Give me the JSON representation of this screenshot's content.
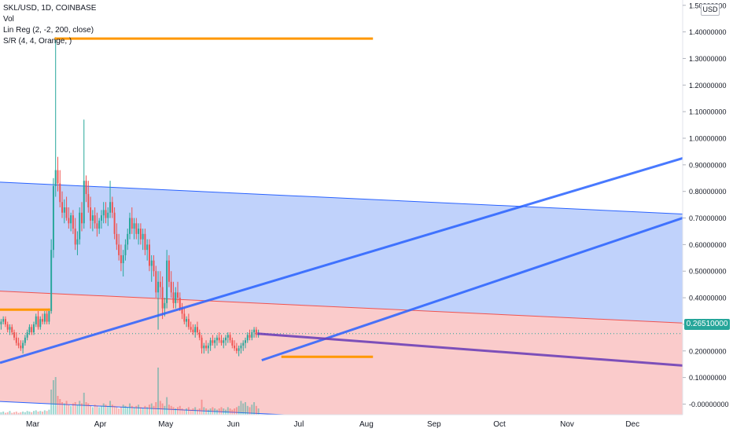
{
  "legend": {
    "symbol_line": "SKL/USD, 1D, COINBASE",
    "vol_line": "Vol",
    "linreg_line": "Lin Reg (2, -2, 200, close)",
    "sr_line": "S/R (4, 4, Orange, )"
  },
  "price_axis": {
    "currency_badge": "USD",
    "last_price_label": "0.26510000",
    "colors": {
      "up": "#26a69a",
      "down": "#ef5350",
      "last_price_bg": "#26a69a"
    }
  },
  "chart_data": {
    "type": "candlestick",
    "symbol": "SKL/USD",
    "interval": "1D",
    "exchange": "COINBASE",
    "ylim": [
      -0.04,
      1.52
    ],
    "y_ticks": [
      "1.50000000",
      "1.40000000",
      "1.30000000",
      "1.20000000",
      "1.10000000",
      "1.00000000",
      "0.90000000",
      "0.80000000",
      "0.70000000",
      "0.60000000",
      "0.50000000",
      "0.40000000",
      "0.30000000",
      "0.20000000",
      "0.10000000",
      "-0.00000000"
    ],
    "y_tick_values": [
      1.5,
      1.4,
      1.3,
      1.2,
      1.1,
      1.0,
      0.9,
      0.8,
      0.7,
      0.6,
      0.5,
      0.4,
      0.3,
      0.2,
      0.1,
      0.0
    ],
    "x_ticks": [
      "Mar",
      "Apr",
      "May",
      "Jun",
      "Jul",
      "Aug",
      "Sep",
      "Oct",
      "Nov",
      "Dec"
    ],
    "x_tick_days": [
      15,
      46,
      76,
      107,
      137,
      168,
      199,
      229,
      260,
      290
    ],
    "x_range_days": [
      0,
      313
    ],
    "last_price": 0.2651,
    "candles": [
      [
        0.3,
        0.32,
        0.28,
        0.31
      ],
      [
        0.31,
        0.33,
        0.3,
        0.32
      ],
      [
        0.32,
        0.33,
        0.29,
        0.3
      ],
      [
        0.3,
        0.31,
        0.27,
        0.28
      ],
      [
        0.28,
        0.3,
        0.26,
        0.29
      ],
      [
        0.29,
        0.3,
        0.26,
        0.27
      ],
      [
        0.27,
        0.28,
        0.24,
        0.25
      ],
      [
        0.25,
        0.27,
        0.22,
        0.23
      ],
      [
        0.23,
        0.25,
        0.21,
        0.22
      ],
      [
        0.22,
        0.24,
        0.2,
        0.21
      ],
      [
        0.21,
        0.24,
        0.19,
        0.23
      ],
      [
        0.23,
        0.26,
        0.22,
        0.25
      ],
      [
        0.25,
        0.28,
        0.24,
        0.27
      ],
      [
        0.27,
        0.3,
        0.26,
        0.29
      ],
      [
        0.29,
        0.3,
        0.26,
        0.27
      ],
      [
        0.27,
        0.31,
        0.26,
        0.3
      ],
      [
        0.3,
        0.34,
        0.29,
        0.33
      ],
      [
        0.33,
        0.35,
        0.28,
        0.29
      ],
      [
        0.29,
        0.33,
        0.28,
        0.32
      ],
      [
        0.32,
        0.34,
        0.3,
        0.31
      ],
      [
        0.31,
        0.35,
        0.3,
        0.34
      ],
      [
        0.34,
        0.35,
        0.3,
        0.31
      ],
      [
        0.31,
        0.36,
        0.3,
        0.35
      ],
      [
        0.35,
        0.62,
        0.34,
        0.58
      ],
      [
        0.58,
        0.85,
        0.55,
        0.82
      ],
      [
        0.82,
        1.38,
        0.78,
        0.88
      ],
      [
        0.88,
        0.93,
        0.8,
        0.83
      ],
      [
        0.83,
        0.88,
        0.74,
        0.76
      ],
      [
        0.76,
        0.8,
        0.7,
        0.72
      ],
      [
        0.72,
        0.77,
        0.68,
        0.74
      ],
      [
        0.74,
        0.78,
        0.69,
        0.7
      ],
      [
        0.7,
        0.74,
        0.66,
        0.68
      ],
      [
        0.68,
        0.72,
        0.65,
        0.71
      ],
      [
        0.71,
        0.73,
        0.64,
        0.66
      ],
      [
        0.66,
        0.7,
        0.58,
        0.6
      ],
      [
        0.6,
        0.65,
        0.56,
        0.62
      ],
      [
        0.62,
        0.74,
        0.6,
        0.72
      ],
      [
        0.72,
        0.76,
        0.65,
        0.68
      ],
      [
        0.68,
        1.07,
        0.66,
        0.84
      ],
      [
        0.84,
        0.86,
        0.76,
        0.79
      ],
      [
        0.79,
        0.84,
        0.72,
        0.74
      ],
      [
        0.74,
        0.78,
        0.66,
        0.69
      ],
      [
        0.69,
        0.73,
        0.65,
        0.71
      ],
      [
        0.71,
        0.74,
        0.66,
        0.68
      ],
      [
        0.68,
        0.72,
        0.63,
        0.66
      ],
      [
        0.66,
        0.7,
        0.64,
        0.69
      ],
      [
        0.69,
        0.73,
        0.66,
        0.71
      ],
      [
        0.71,
        0.76,
        0.68,
        0.73
      ],
      [
        0.73,
        0.76,
        0.68,
        0.7
      ],
      [
        0.7,
        0.74,
        0.67,
        0.72
      ],
      [
        0.72,
        0.84,
        0.7,
        0.76
      ],
      [
        0.76,
        0.78,
        0.7,
        0.72
      ],
      [
        0.72,
        0.74,
        0.62,
        0.64
      ],
      [
        0.64,
        0.68,
        0.58,
        0.6
      ],
      [
        0.6,
        0.64,
        0.54,
        0.56
      ],
      [
        0.56,
        0.6,
        0.5,
        0.53
      ],
      [
        0.53,
        0.58,
        0.48,
        0.56
      ],
      [
        0.56,
        0.62,
        0.54,
        0.6
      ],
      [
        0.6,
        0.66,
        0.58,
        0.64
      ],
      [
        0.64,
        0.72,
        0.62,
        0.7
      ],
      [
        0.7,
        0.74,
        0.64,
        0.66
      ],
      [
        0.66,
        0.7,
        0.62,
        0.68
      ],
      [
        0.68,
        0.7,
        0.62,
        0.64
      ],
      [
        0.64,
        0.68,
        0.6,
        0.66
      ],
      [
        0.66,
        0.68,
        0.6,
        0.62
      ],
      [
        0.62,
        0.66,
        0.58,
        0.64
      ],
      [
        0.64,
        0.66,
        0.56,
        0.58
      ],
      [
        0.58,
        0.62,
        0.54,
        0.6
      ],
      [
        0.6,
        0.62,
        0.5,
        0.52
      ],
      [
        0.52,
        0.56,
        0.46,
        0.54
      ],
      [
        0.54,
        0.56,
        0.48,
        0.5
      ],
      [
        0.5,
        0.52,
        0.4,
        0.42
      ],
      [
        0.42,
        0.5,
        0.28,
        0.46
      ],
      [
        0.46,
        0.5,
        0.4,
        0.44
      ],
      [
        0.44,
        0.48,
        0.32,
        0.36
      ],
      [
        0.36,
        0.4,
        0.33,
        0.38
      ],
      [
        0.38,
        0.58,
        0.36,
        0.54
      ],
      [
        0.54,
        0.56,
        0.44,
        0.46
      ],
      [
        0.46,
        0.5,
        0.4,
        0.42
      ],
      [
        0.42,
        0.46,
        0.36,
        0.38
      ],
      [
        0.38,
        0.44,
        0.36,
        0.42
      ],
      [
        0.42,
        0.46,
        0.38,
        0.4
      ],
      [
        0.4,
        0.42,
        0.35,
        0.36
      ],
      [
        0.36,
        0.38,
        0.32,
        0.34
      ],
      [
        0.34,
        0.36,
        0.3,
        0.31
      ],
      [
        0.31,
        0.33,
        0.29,
        0.32
      ],
      [
        0.32,
        0.34,
        0.28,
        0.29
      ],
      [
        0.29,
        0.31,
        0.27,
        0.28
      ],
      [
        0.28,
        0.3,
        0.26,
        0.27
      ],
      [
        0.27,
        0.3,
        0.25,
        0.29
      ],
      [
        0.29,
        0.31,
        0.26,
        0.27
      ],
      [
        0.27,
        0.28,
        0.24,
        0.25
      ],
      [
        0.25,
        0.26,
        0.19,
        0.21
      ],
      [
        0.21,
        0.23,
        0.19,
        0.22
      ],
      [
        0.22,
        0.24,
        0.2,
        0.21
      ],
      [
        0.21,
        0.23,
        0.19,
        0.22
      ],
      [
        0.22,
        0.25,
        0.2,
        0.24
      ],
      [
        0.24,
        0.26,
        0.22,
        0.23
      ],
      [
        0.23,
        0.25,
        0.21,
        0.24
      ],
      [
        0.24,
        0.26,
        0.22,
        0.25
      ],
      [
        0.25,
        0.27,
        0.23,
        0.24
      ],
      [
        0.24,
        0.26,
        0.22,
        0.23
      ],
      [
        0.23,
        0.25,
        0.21,
        0.24
      ],
      [
        0.24,
        0.26,
        0.22,
        0.25
      ],
      [
        0.25,
        0.27,
        0.23,
        0.26
      ],
      [
        0.26,
        0.27,
        0.23,
        0.24
      ],
      [
        0.24,
        0.25,
        0.21,
        0.22
      ],
      [
        0.22,
        0.24,
        0.2,
        0.21
      ],
      [
        0.21,
        0.23,
        0.19,
        0.2
      ],
      [
        0.2,
        0.22,
        0.18,
        0.21
      ],
      [
        0.21,
        0.23,
        0.19,
        0.22
      ],
      [
        0.22,
        0.24,
        0.2,
        0.23
      ],
      [
        0.23,
        0.25,
        0.21,
        0.24
      ],
      [
        0.24,
        0.27,
        0.23,
        0.26
      ],
      [
        0.26,
        0.28,
        0.24,
        0.25
      ],
      [
        0.25,
        0.28,
        0.24,
        0.27
      ],
      [
        0.27,
        0.29,
        0.25,
        0.28
      ],
      [
        0.28,
        0.29,
        0.25,
        0.26
      ],
      [
        0.26,
        0.28,
        0.25,
        0.265
      ]
    ],
    "candle_start_day": 0,
    "volume": [
      4,
      5,
      3,
      4,
      6,
      3,
      4,
      5,
      3,
      4,
      5,
      4,
      6,
      5,
      4,
      6,
      7,
      5,
      6,
      5,
      7,
      6,
      8,
      40,
      55,
      60,
      30,
      25,
      20,
      18,
      22,
      16,
      14,
      18,
      20,
      16,
      22,
      18,
      35,
      20,
      18,
      14,
      12,
      16,
      14,
      12,
      14,
      18,
      16,
      14,
      22,
      16,
      14,
      12,
      10,
      12,
      16,
      14,
      12,
      18,
      14,
      12,
      14,
      16,
      12,
      10,
      14,
      12,
      16,
      18,
      14,
      20,
      75,
      22,
      18,
      14,
      28,
      16,
      14,
      12,
      10,
      12,
      14,
      10,
      8,
      10,
      12,
      8,
      10,
      12,
      8,
      10,
      24,
      12,
      10,
      8,
      10,
      12,
      10,
      8,
      10,
      12,
      10,
      8,
      12,
      10,
      8,
      10,
      12,
      14,
      22,
      18,
      20,
      14,
      12,
      16,
      20,
      14,
      10
    ],
    "overlays": {
      "upper_channel": [
        [
          0,
          0.835
        ],
        [
          313,
          0.715
        ]
      ],
      "mid_channel": [
        [
          0,
          0.425
        ],
        [
          313,
          0.305
        ]
      ],
      "lower_channel": [
        [
          0,
          0.01
        ],
        [
          313,
          -0.11
        ]
      ],
      "rising_trend_1": [
        [
          0,
          0.155
        ],
        [
          313,
          0.925
        ]
      ],
      "rising_trend_2": [
        [
          120,
          0.165
        ],
        [
          313,
          0.7
        ]
      ],
      "falling_trend": [
        [
          118,
          0.265
        ],
        [
          313,
          0.145
        ]
      ],
      "sr_levels": [
        {
          "from": 0,
          "to": 23,
          "price": 0.355
        },
        {
          "from": 25,
          "to": 171,
          "price": 1.375
        },
        {
          "from": 129,
          "to": 171,
          "price": 0.178
        }
      ]
    }
  }
}
